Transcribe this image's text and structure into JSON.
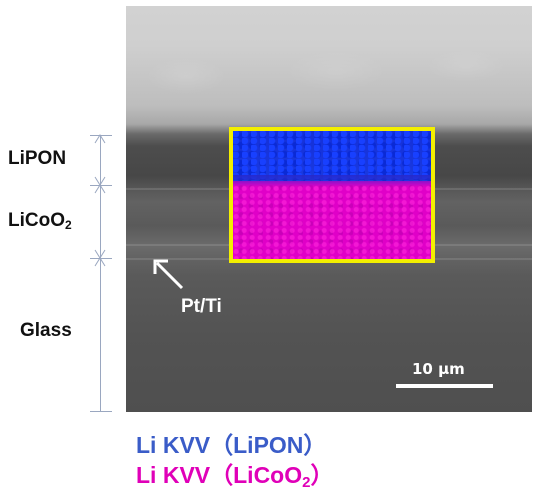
{
  "labels": {
    "lipon": "LiPON",
    "licoo2_main": "LiCoO",
    "licoo2_sub": "2",
    "glass": "Glass",
    "ptti": "Pt/Ti"
  },
  "scale_bar": {
    "label": "10 μm"
  },
  "legend": [
    {
      "prefix": "Li KVV（",
      "name": "LiPON",
      "sub": "",
      "suffix": "）",
      "color": "#3a5cc8"
    },
    {
      "prefix": "Li KVV（",
      "name": "LiCoO",
      "sub": "2",
      "suffix": "）",
      "color": "#e000b8"
    }
  ],
  "colors": {
    "map_frame": "#f3ef00",
    "map_lipon": "#1530d8",
    "map_licoo2": "#e000c8"
  }
}
